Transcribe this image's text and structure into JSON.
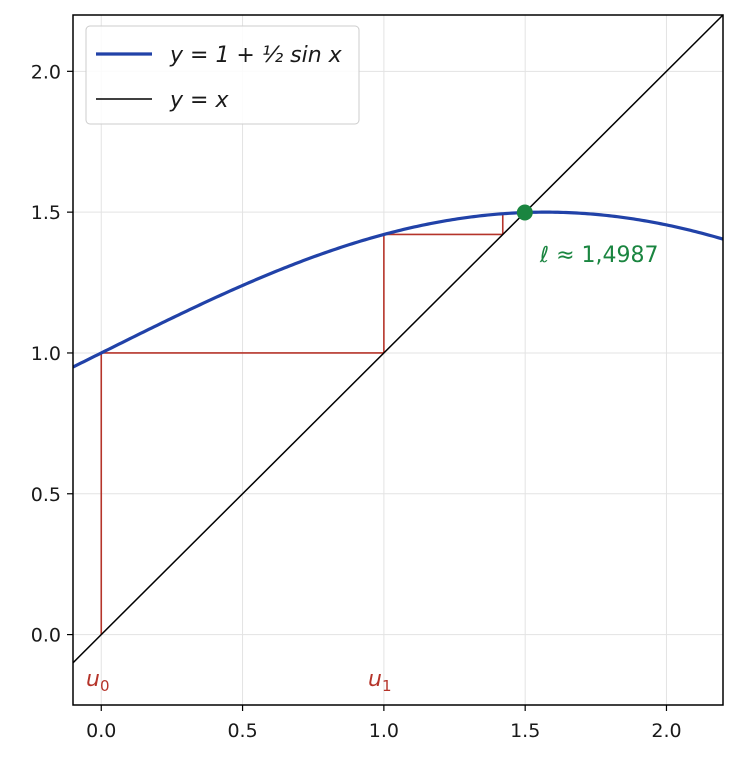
{
  "chart_data": {
    "type": "line",
    "xlim": [
      -0.1,
      2.2
    ],
    "ylim": [
      -0.25,
      2.2
    ],
    "x_ticks": [
      0.0,
      0.5,
      1.0,
      1.5,
      2.0
    ],
    "y_ticks": [
      0.0,
      0.5,
      1.0,
      1.5,
      2.0
    ],
    "x_tick_labels": [
      "0.0",
      "0.5",
      "1.0",
      "1.5",
      "2.0"
    ],
    "y_tick_labels": [
      "0.0",
      "0.5",
      "1.0",
      "1.5",
      "2.0"
    ],
    "grid": true,
    "legend_position": "top-left",
    "series": [
      {
        "name": "y = 1 + ½ sin x",
        "function": "1 + 0.5*sin(x)",
        "color": "#2142a8"
      },
      {
        "name": "y = x",
        "function": "x",
        "color": "#000000"
      }
    ],
    "cobweb": {
      "color": "#b5342a",
      "points": [
        [
          0,
          0
        ],
        [
          0,
          1
        ],
        [
          1,
          1
        ],
        [
          1,
          1.4207
        ],
        [
          1.4207,
          1.4207
        ],
        [
          1.4207,
          1.4943
        ],
        [
          1.4943,
          1.4943
        ],
        [
          1.4943,
          1.4985
        ]
      ]
    },
    "fixed_point": {
      "x": 1.4987,
      "y": 1.4987,
      "color": "#1a8540"
    },
    "annotations": {
      "fixed_point_label": "ℓ ≈ 1,4987",
      "u0_label": "u",
      "u0_sub": "0",
      "u1_label": "u",
      "u1_sub": "1"
    }
  }
}
